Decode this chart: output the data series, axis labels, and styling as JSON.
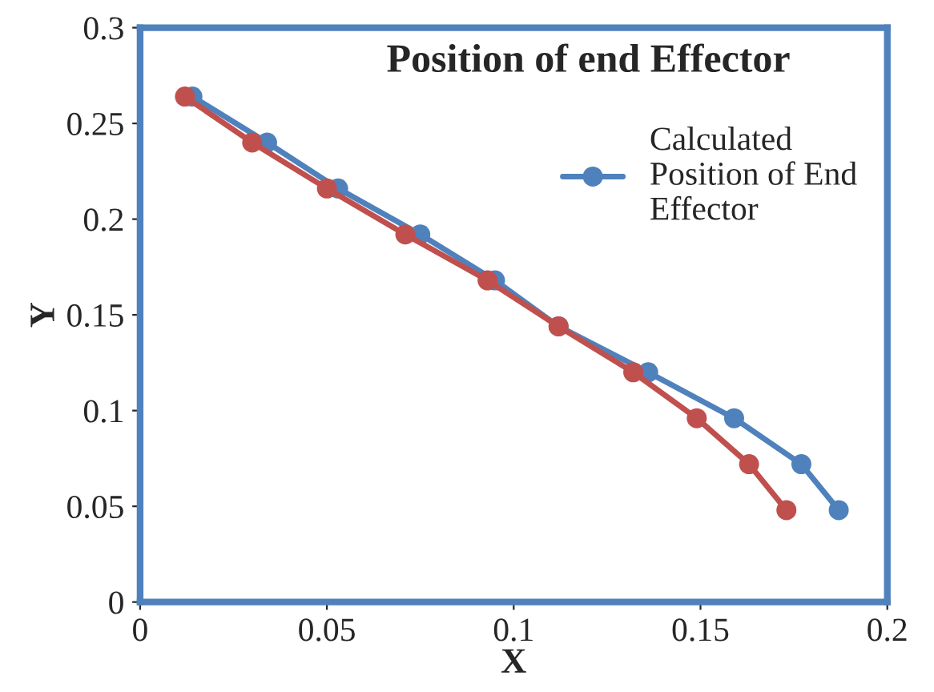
{
  "chart_data": {
    "type": "line",
    "title": "Position of end Effector",
    "xlabel": "X",
    "ylabel": "Y",
    "series": [
      {
        "name": "Calculated Position of End Effector",
        "color": "#4f81bd",
        "x": [
          0.014,
          0.034,
          0.053,
          0.075,
          0.095,
          0.112,
          0.136,
          0.159,
          0.177,
          0.187
        ],
        "values": [
          0.264,
          0.24,
          0.216,
          0.192,
          0.168,
          0.144,
          0.12,
          0.096,
          0.072,
          0.048
        ]
      },
      {
        "color": "#c0504d",
        "x": [
          0.012,
          0.03,
          0.05,
          0.071,
          0.093,
          0.112,
          0.132,
          0.149,
          0.163,
          0.173
        ],
        "values": [
          0.264,
          0.24,
          0.216,
          0.192,
          0.168,
          0.144,
          0.12,
          0.096,
          0.072,
          0.048
        ]
      }
    ],
    "xlim": [
      0,
      0.2
    ],
    "xticks": [
      0,
      0.05,
      0.1,
      0.15,
      0.2
    ],
    "ylim": [
      0,
      0.3
    ],
    "yticks": [
      0,
      0.05,
      0.1,
      0.15,
      0.2,
      0.25,
      0.3
    ],
    "grid": false,
    "legend": "top right",
    "marker": "circle",
    "line_style": "solid"
  }
}
